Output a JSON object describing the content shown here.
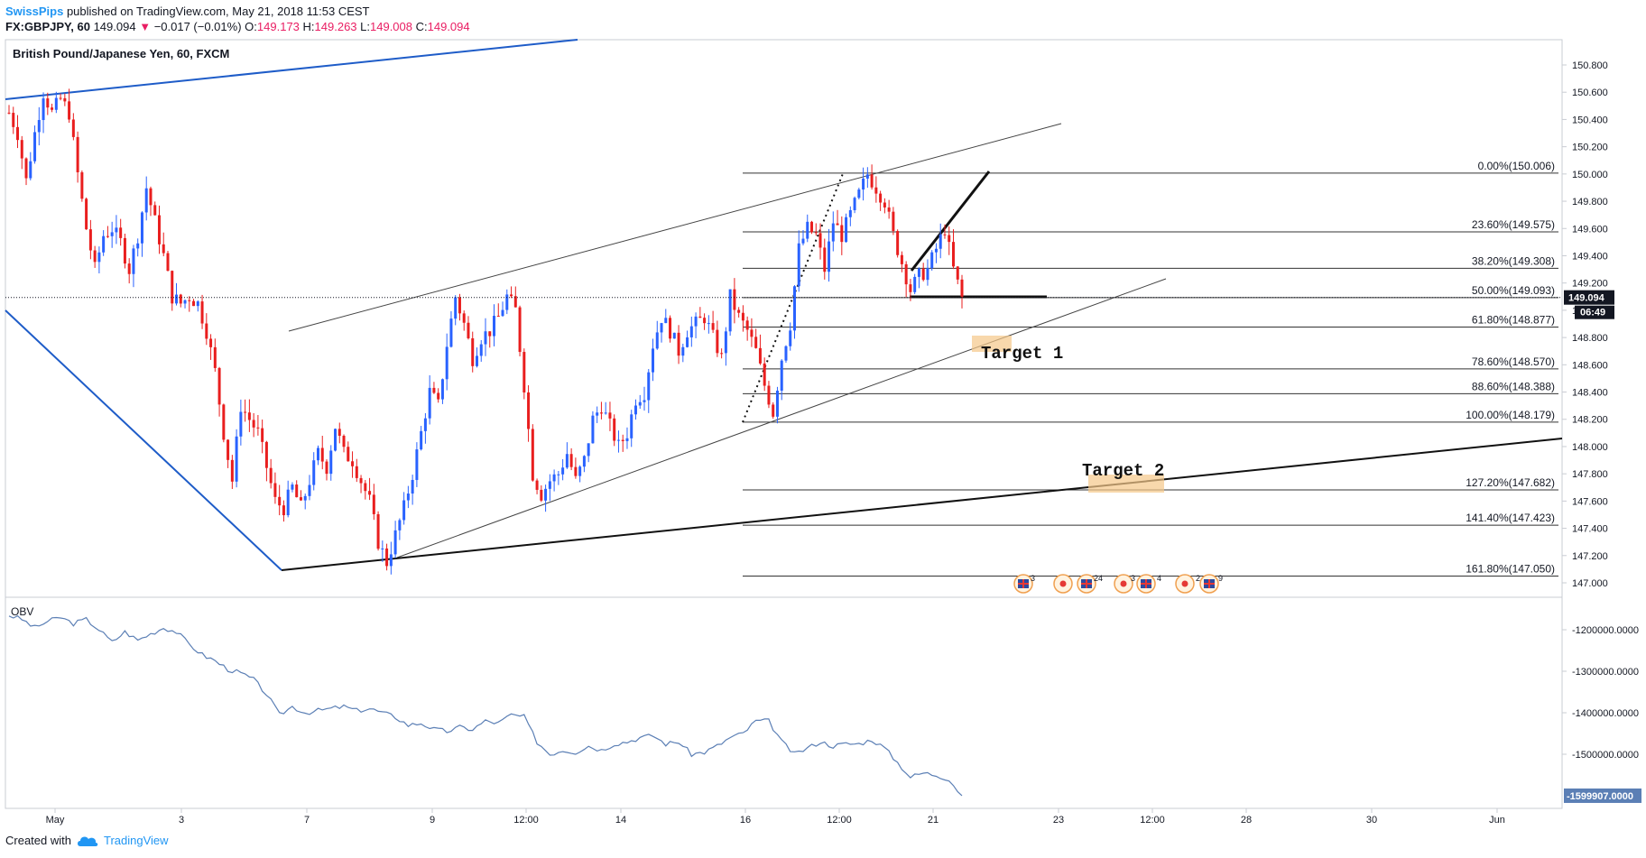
{
  "header": {
    "author": "SwissPips",
    "published_text": "published on TradingView.com, May 21, 2018 11:53 CEST",
    "symbol_line": "FX:GBPJPY, 60",
    "last": "149.094",
    "change": "−0.017 (−0.01%)",
    "ohlc": [
      {
        "label": "O:",
        "value": "149.173"
      },
      {
        "label": "H:",
        "value": "149.263"
      },
      {
        "label": "L:",
        "value": "149.008"
      },
      {
        "label": "C:",
        "value": "149.094"
      }
    ]
  },
  "colors": {
    "up": "#2962ff",
    "down": "#e91e1e",
    "trend_blue": "#1e5cc8",
    "obv_line": "#5b7fb5",
    "target_fill": "#f5c889",
    "price_badge": "#131722"
  },
  "chart_data": [
    {
      "type": "line",
      "title": "British Pound/Japanese Yen, 60, FXCM",
      "x_ticks": [
        "May",
        "3",
        "7",
        "9",
        "12:00",
        "14",
        "16",
        "12:00",
        "21",
        "23",
        "12:00",
        "28",
        "30",
        "Jun"
      ],
      "y_ticks": [
        "150.800",
        "150.600",
        "150.400",
        "150.200",
        "150.000",
        "149.800",
        "149.600",
        "149.400",
        "149.200",
        "149.000",
        "148.800",
        "148.600",
        "148.400",
        "148.200",
        "148.000",
        "147.800",
        "147.600",
        "147.400",
        "147.200",
        "147.000"
      ],
      "ylim": [
        146.94,
        150.9
      ],
      "last_price": "149.094",
      "countdown": "06:49",
      "price_path": [
        [
          0,
          150.45
        ],
        [
          2,
          150.3
        ],
        [
          4,
          149.95
        ],
        [
          6,
          150.3
        ],
        [
          8,
          150.6
        ],
        [
          10,
          150.45
        ],
        [
          12,
          150.55
        ],
        [
          14,
          150.45
        ],
        [
          16,
          150.0
        ],
        [
          18,
          149.6
        ],
        [
          20,
          149.3
        ],
        [
          22,
          149.55
        ],
        [
          24,
          149.6
        ],
        [
          26,
          149.5
        ],
        [
          28,
          149.3
        ],
        [
          30,
          149.55
        ],
        [
          32,
          149.9
        ],
        [
          34,
          149.65
        ],
        [
          36,
          149.4
        ],
        [
          38,
          149.1
        ],
        [
          40,
          149.05
        ],
        [
          42,
          149.1
        ],
        [
          44,
          149.05
        ],
        [
          46,
          148.85
        ],
        [
          48,
          148.55
        ],
        [
          50,
          148.1
        ],
        [
          52,
          147.75
        ],
        [
          54,
          148.3
        ],
        [
          56,
          148.2
        ],
        [
          58,
          148.1
        ],
        [
          60,
          147.85
        ],
        [
          62,
          147.6
        ],
        [
          64,
          147.55
        ],
        [
          66,
          147.7
        ],
        [
          68,
          147.55
        ],
        [
          70,
          147.75
        ],
        [
          72,
          147.95
        ],
        [
          74,
          147.85
        ],
        [
          76,
          148.15
        ],
        [
          78,
          147.95
        ],
        [
          80,
          147.9
        ],
        [
          82,
          147.75
        ],
        [
          84,
          147.6
        ],
        [
          86,
          147.3
        ],
        [
          88,
          147.15
        ],
        [
          90,
          147.35
        ],
        [
          92,
          147.55
        ],
        [
          94,
          147.8
        ],
        [
          96,
          148.1
        ],
        [
          98,
          148.4
        ],
        [
          100,
          148.3
        ],
        [
          102,
          148.75
        ],
        [
          104,
          149.1
        ],
        [
          106,
          148.9
        ],
        [
          108,
          148.65
        ],
        [
          110,
          148.8
        ],
        [
          112,
          148.85
        ],
        [
          114,
          148.95
        ],
        [
          116,
          149.1
        ],
        [
          118,
          149.0
        ],
        [
          120,
          148.45
        ],
        [
          122,
          147.8
        ],
        [
          124,
          147.65
        ],
        [
          126,
          147.75
        ],
        [
          128,
          147.8
        ],
        [
          130,
          147.95
        ],
        [
          132,
          147.75
        ],
        [
          134,
          147.9
        ],
        [
          136,
          148.2
        ],
        [
          138,
          148.3
        ],
        [
          140,
          148.15
        ],
        [
          142,
          148.0
        ],
        [
          144,
          148.1
        ],
        [
          146,
          148.35
        ],
        [
          148,
          148.4
        ],
        [
          150,
          148.75
        ],
        [
          152,
          148.95
        ],
        [
          154,
          148.85
        ],
        [
          156,
          148.7
        ],
        [
          158,
          148.85
        ],
        [
          160,
          148.9
        ],
        [
          162,
          148.95
        ],
        [
          164,
          148.8
        ],
        [
          166,
          148.65
        ],
        [
          168,
          149.1
        ],
        [
          170,
          148.95
        ],
        [
          172,
          148.85
        ],
        [
          174,
          148.7
        ],
        [
          176,
          148.45
        ],
        [
          178,
          148.25
        ],
        [
          180,
          148.65
        ],
        [
          182,
          148.9
        ],
        [
          184,
          149.45
        ],
        [
          186,
          149.6
        ],
        [
          188,
          149.55
        ],
        [
          190,
          149.3
        ],
        [
          192,
          149.65
        ],
        [
          194,
          149.55
        ],
        [
          196,
          149.7
        ],
        [
          198,
          149.85
        ],
        [
          200,
          150.0
        ],
        [
          202,
          149.9
        ],
        [
          204,
          149.8
        ],
        [
          206,
          149.55
        ],
        [
          208,
          149.35
        ],
        [
          210,
          149.15
        ],
        [
          212,
          149.25
        ],
        [
          214,
          149.3
        ],
        [
          216,
          149.45
        ],
        [
          218,
          149.6
        ],
        [
          220,
          149.3
        ],
        [
          222,
          149.09
        ]
      ],
      "annotations": [
        "Target 1",
        "Target 2"
      ],
      "fib_levels": [
        {
          "label": "0.00%(150.006)",
          "price": 150.006
        },
        {
          "label": "23.60%(149.575)",
          "price": 149.575
        },
        {
          "label": "38.20%(149.308)",
          "price": 149.308
        },
        {
          "label": "50.00%(149.093)",
          "price": 149.093
        },
        {
          "label": "61.80%(148.877)",
          "price": 148.877
        },
        {
          "label": "78.60%(148.570)",
          "price": 148.57
        },
        {
          "label": "88.60%(148.388)",
          "price": 148.388
        },
        {
          "label": "100.00%(148.179)",
          "price": 148.179
        },
        {
          "label": "127.20%(147.682)",
          "price": 147.682
        },
        {
          "label": "141.40%(147.423)",
          "price": 147.423
        },
        {
          "label": "161.80%(147.050)",
          "price": 147.05
        }
      ],
      "events": [
        "3",
        "24",
        "3",
        "4",
        "2",
        "9"
      ]
    },
    {
      "type": "line",
      "title": "OBV",
      "y_ticks": [
        "-1200000.0000",
        "-1300000.0000",
        "-1400000.0000",
        "-1500000.0000"
      ],
      "ylim": [
        -1625000,
        -1130000
      ],
      "last_value": "-1599907.0000",
      "values": [
        [
          0,
          -1165000
        ],
        [
          3,
          -1175000
        ],
        [
          6,
          -1195000
        ],
        [
          9,
          -1180000
        ],
        [
          12,
          -1170000
        ],
        [
          15,
          -1185000
        ],
        [
          18,
          -1175000
        ],
        [
          21,
          -1200000
        ],
        [
          24,
          -1230000
        ],
        [
          27,
          -1205000
        ],
        [
          30,
          -1225000
        ],
        [
          33,
          -1210000
        ],
        [
          36,
          -1195000
        ],
        [
          39,
          -1205000
        ],
        [
          42,
          -1235000
        ],
        [
          45,
          -1260000
        ],
        [
          48,
          -1275000
        ],
        [
          51,
          -1295000
        ],
        [
          54,
          -1305000
        ],
        [
          57,
          -1320000
        ],
        [
          60,
          -1355000
        ],
        [
          63,
          -1405000
        ],
        [
          66,
          -1385000
        ],
        [
          69,
          -1400000
        ],
        [
          72,
          -1395000
        ],
        [
          75,
          -1390000
        ],
        [
          78,
          -1385000
        ],
        [
          81,
          -1395000
        ],
        [
          84,
          -1390000
        ],
        [
          87,
          -1400000
        ],
        [
          90,
          -1410000
        ],
        [
          93,
          -1430000
        ],
        [
          96,
          -1425000
        ],
        [
          99,
          -1440000
        ],
        [
          102,
          -1445000
        ],
        [
          105,
          -1435000
        ],
        [
          108,
          -1440000
        ],
        [
          111,
          -1420000
        ],
        [
          114,
          -1425000
        ],
        [
          117,
          -1405000
        ],
        [
          120,
          -1410000
        ],
        [
          123,
          -1470000
        ],
        [
          126,
          -1500000
        ],
        [
          129,
          -1490000
        ],
        [
          132,
          -1495000
        ],
        [
          135,
          -1480000
        ],
        [
          138,
          -1490000
        ],
        [
          141,
          -1475000
        ],
        [
          144,
          -1470000
        ],
        [
          147,
          -1460000
        ],
        [
          150,
          -1455000
        ],
        [
          153,
          -1475000
        ],
        [
          156,
          -1470000
        ],
        [
          159,
          -1500000
        ],
        [
          162,
          -1495000
        ],
        [
          165,
          -1480000
        ],
        [
          168,
          -1460000
        ],
        [
          171,
          -1450000
        ],
        [
          174,
          -1420000
        ],
        [
          177,
          -1420000
        ],
        [
          180,
          -1470000
        ],
        [
          183,
          -1500000
        ],
        [
          186,
          -1485000
        ],
        [
          189,
          -1470000
        ],
        [
          192,
          -1480000
        ],
        [
          195,
          -1475000
        ],
        [
          198,
          -1475000
        ],
        [
          201,
          -1465000
        ],
        [
          204,
          -1485000
        ],
        [
          207,
          -1520000
        ],
        [
          210,
          -1555000
        ],
        [
          213,
          -1545000
        ],
        [
          216,
          -1550000
        ],
        [
          219,
          -1560000
        ],
        [
          222,
          -1600000
        ]
      ]
    }
  ],
  "footer": {
    "created_with": "Created with",
    "brand": "TradingView"
  }
}
